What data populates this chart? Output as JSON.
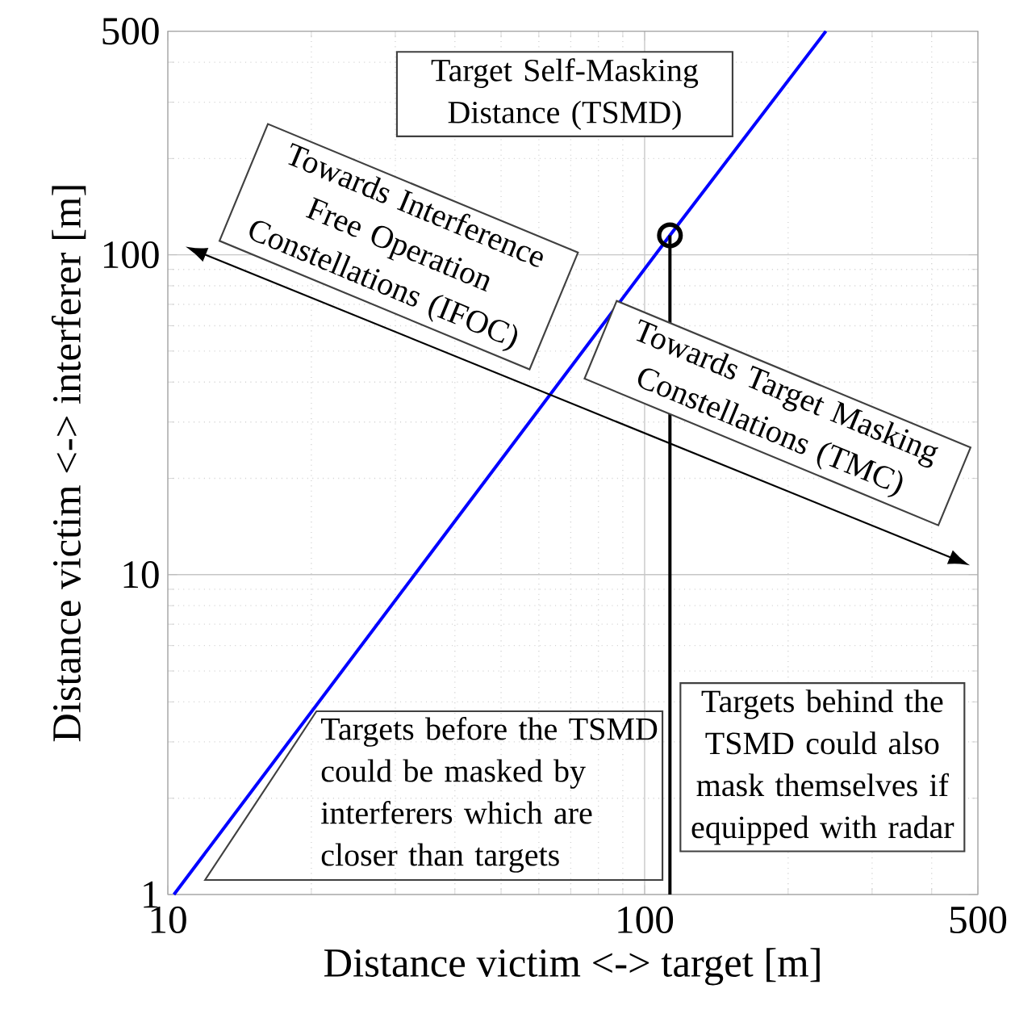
{
  "chart_data": {
    "type": "line",
    "xlabel": "Distance victim <-> target [m]",
    "ylabel": "Distance victim <-> interferer [m]",
    "xlim": [
      10,
      500
    ],
    "ylim": [
      1,
      500
    ],
    "xticks": [
      10,
      100,
      500
    ],
    "yticks": [
      1,
      10,
      100,
      500
    ],
    "log": "xy",
    "grid": true,
    "series": [
      {
        "color": "#0000ff",
        "x": [
          10.3,
          113,
          240
        ],
        "values": [
          1,
          115,
          500
        ]
      },
      {
        "type": "line",
        "color": "#000000",
        "x": [
          113,
          113
        ],
        "values": [
          1,
          115
        ]
      },
      {
        "type": "scatter",
        "color": "#000000",
        "marker": "circle",
        "x": [
          113
        ],
        "values": [
          115
        ]
      }
    ],
    "annotations": [
      "Target Self-Masking Distance (TSMD)",
      "Towards Interference Free Operation Constellations (IFOC)",
      "Towards Target Masking Constellations (TMC)",
      "Targets before the TSMD could be masked by interferers which are closer than targets",
      "Targets behind the TSMD could also mask themselves if equipped with radar"
    ]
  }
}
